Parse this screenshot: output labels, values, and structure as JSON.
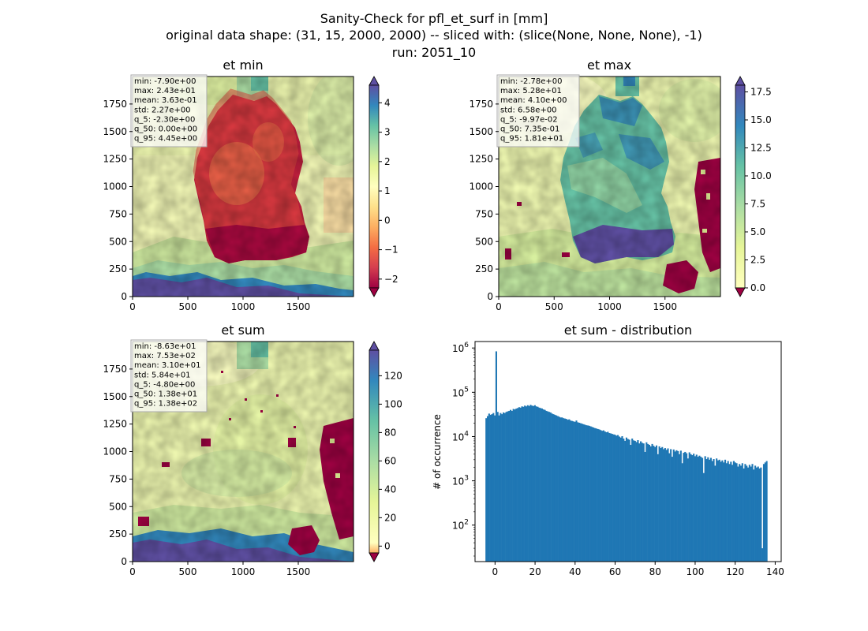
{
  "figure": {
    "title_lines": [
      "Sanity-Check for pfl_et_surf in [mm]",
      "original data shape: (31, 15, 2000, 2000) -- sliced with: (slice(None, None, None), -1)",
      "run: 2051_10"
    ]
  },
  "chart_data": [
    {
      "type": "heatmap",
      "title": "et min",
      "xlim": [
        0,
        2000
      ],
      "ylim": [
        0,
        2000
      ],
      "xticks": [
        0,
        500,
        1000,
        1500
      ],
      "yticks": [
        0,
        250,
        500,
        750,
        1000,
        1250,
        1500,
        1750
      ],
      "colormap": "Spectral",
      "colorbar": {
        "min": -2.3,
        "max": 4.6,
        "ticks": [
          -2,
          -1,
          0,
          1,
          2,
          3,
          4
        ],
        "extend": "both",
        "under_color": "#9e0142",
        "over_color": "#5e4fa2"
      },
      "stats": [
        "min: -7.90e+00",
        "max: 2.43e+01",
        "mean: 3.63e-01",
        "std: 2.27e+00",
        "q_5: -2.30e+00",
        "q_50: 0.00e+00",
        "q_95: 4.45e+00"
      ]
    },
    {
      "type": "heatmap",
      "title": "et max",
      "xlim": [
        0,
        2000
      ],
      "ylim": [
        0,
        2000
      ],
      "xticks": [
        0,
        500,
        1000,
        1500
      ],
      "yticks": [
        0,
        250,
        500,
        750,
        1000,
        1250,
        1500,
        1750
      ],
      "colormap": "Spectral",
      "colorbar": {
        "min": 0.0,
        "max": 18.1,
        "ticks": [
          0.0,
          2.5,
          5.0,
          7.5,
          10.0,
          12.5,
          15.0,
          17.5
        ],
        "extend": "both",
        "under_color": "#9e0142",
        "over_color": "#5e4fa2"
      },
      "stats": [
        "min: -2.78e+00",
        "max: 5.28e+01",
        "mean: 4.10e+00",
        "std: 6.58e+00",
        "q_5: -9.97e-02",
        "q_50: 7.35e-01",
        "q_95: 1.81e+01"
      ]
    },
    {
      "type": "heatmap",
      "title": "et sum",
      "xlim": [
        0,
        2000
      ],
      "ylim": [
        0,
        2000
      ],
      "xticks": [
        0,
        500,
        1000,
        1500
      ],
      "yticks": [
        0,
        250,
        500,
        750,
        1000,
        1250,
        1500,
        1750
      ],
      "colormap": "Spectral",
      "colorbar": {
        "min": -4.8,
        "max": 138,
        "ticks": [
          0,
          20,
          40,
          60,
          80,
          100,
          120
        ],
        "extend": "both",
        "under_color": "#9e0142",
        "over_color": "#5e4fa2"
      },
      "stats": [
        "min: -8.63e+01",
        "max: 7.53e+02",
        "mean: 3.10e+01",
        "std: 5.84e+01",
        "q_5: -4.80e+00",
        "q_50: 1.38e+01",
        "q_95: 1.38e+02"
      ]
    },
    {
      "type": "bar",
      "title": "et sum - distribution",
      "xlabel": "",
      "ylabel": "# of occurrence",
      "xlim": [
        -10,
        143
      ],
      "ylim": [
        15,
        1400000
      ],
      "yscale": "log",
      "xticks": [
        0,
        20,
        40,
        60,
        80,
        100,
        120,
        140
      ],
      "yticks": [
        100,
        1000,
        10000,
        100000,
        1000000
      ],
      "bar_color": "#1f77b4",
      "bin_start": -4.8,
      "bin_width": 0.715,
      "counts": [
        26000,
        29000,
        33000,
        31000,
        32000,
        34000,
        30000,
        840000,
        36000,
        30000,
        34000,
        32000,
        35000,
        34000,
        36000,
        37000,
        38000,
        40000,
        38000,
        42000,
        41000,
        43000,
        44000,
        46000,
        45000,
        48000,
        47000,
        50000,
        48000,
        51000,
        49000,
        52000,
        50000,
        49000,
        51000,
        48000,
        47000,
        45000,
        44000,
        43000,
        41000,
        40000,
        38000,
        37000,
        36000,
        35000,
        33000,
        32000,
        31000,
        30000,
        29000,
        28000,
        27000,
        27000,
        26000,
        25500,
        25000,
        24000,
        24500,
        23000,
        22500,
        22000,
        21500,
        23000,
        21000,
        20500,
        20000,
        19500,
        19000,
        18500,
        18000,
        17800,
        17500,
        17000,
        16500,
        16000,
        15500,
        15200,
        14800,
        14500,
        14000,
        13500,
        13800,
        13000,
        12500,
        12800,
        12000,
        11800,
        11500,
        11200,
        11000,
        10500,
        10800,
        10000,
        9500,
        10200,
        9000,
        8000,
        9500,
        8800,
        8500,
        6500,
        9000,
        8200,
        8000,
        7500,
        8300,
        7000,
        7800,
        7200,
        7000,
        4500,
        7400,
        6800,
        6500,
        6000,
        6800,
        6200,
        5800,
        6300,
        4000,
        6000,
        5500,
        5800,
        5200,
        5500,
        5000,
        5400,
        4200,
        5200,
        3500,
        5100,
        4600,
        4900,
        4700,
        4000,
        4800,
        2500,
        4300,
        4500,
        4200,
        3200,
        4400,
        4000,
        3800,
        4100,
        3600,
        3900,
        3500,
        3700,
        3500,
        3300,
        1500,
        3600,
        3100,
        3400,
        3000,
        3300,
        2800,
        3100,
        2200,
        3200,
        2900,
        3000,
        2700,
        2900,
        2600,
        3000,
        2500,
        2800,
        2400,
        2700,
        2300,
        2800,
        2600,
        2500,
        2100,
        2400,
        2200,
        2500,
        1900,
        2400,
        2200,
        2000,
        2300,
        2100,
        2400,
        1800,
        2200,
        2000,
        2100,
        1900,
        2000,
        30,
        2400,
        2600,
        2800
      ]
    }
  ]
}
